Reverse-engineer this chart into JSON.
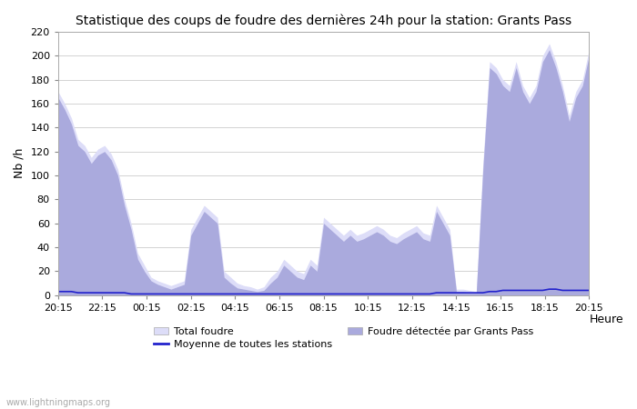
{
  "title": "Statistique des coups de foudre des dernières 24h pour la station: Grants Pass",
  "xlabel": "Heure",
  "ylabel": "Nb /h",
  "watermark": "www.lightningmaps.org",
  "ylim": [
    0,
    220
  ],
  "yticks": [
    0,
    20,
    40,
    60,
    80,
    100,
    120,
    140,
    160,
    180,
    200,
    220
  ],
  "xtick_labels": [
    "20:15",
    "22:15",
    "00:15",
    "02:15",
    "04:15",
    "06:15",
    "08:15",
    "10:15",
    "12:15",
    "14:15",
    "16:15",
    "18:15",
    "20:15"
  ],
  "xtick_positions": [
    0,
    2,
    4,
    6,
    8,
    10,
    12,
    14,
    16,
    18,
    20,
    22,
    24
  ],
  "color_total": "#ddddf8",
  "color_local": "#aaaadd",
  "color_avg": "#2222cc",
  "background": "#ffffff",
  "total_x": [
    0,
    0.3,
    0.6,
    0.9,
    1.2,
    1.5,
    1.8,
    2.1,
    2.4,
    2.7,
    3.0,
    3.3,
    3.6,
    3.9,
    4.2,
    4.5,
    4.8,
    5.1,
    5.4,
    5.7,
    6.0,
    6.3,
    6.6,
    6.9,
    7.2,
    7.5,
    7.8,
    8.1,
    8.4,
    8.7,
    9.0,
    9.3,
    9.6,
    9.9,
    10.2,
    10.5,
    10.8,
    11.1,
    11.4,
    11.7,
    12.0,
    12.3,
    12.6,
    12.9,
    13.2,
    13.5,
    13.8,
    14.1,
    14.4,
    14.7,
    15.0,
    15.3,
    15.6,
    15.9,
    16.2,
    16.5,
    16.8,
    17.1,
    17.4,
    17.7,
    18.0,
    18.3,
    18.6,
    18.9,
    19.2,
    19.5,
    19.8,
    20.1,
    20.4,
    20.7,
    21.0,
    21.3,
    21.6,
    21.9,
    22.2,
    22.5,
    22.8,
    23.1,
    23.4,
    23.7,
    24.0
  ],
  "total_foudre": [
    170,
    160,
    148,
    130,
    125,
    115,
    122,
    125,
    118,
    105,
    80,
    60,
    35,
    25,
    15,
    12,
    10,
    8,
    10,
    12,
    55,
    65,
    75,
    70,
    65,
    20,
    15,
    10,
    8,
    7,
    5,
    7,
    15,
    20,
    30,
    25,
    20,
    18,
    30,
    25,
    65,
    60,
    55,
    50,
    55,
    50,
    52,
    55,
    58,
    55,
    50,
    48,
    52,
    55,
    58,
    52,
    50,
    75,
    65,
    55,
    5,
    5,
    4,
    3,
    110,
    195,
    190,
    180,
    175,
    195,
    175,
    165,
    175,
    200,
    210,
    195,
    175,
    150,
    170,
    180,
    205
  ],
  "local_foudre": [
    165,
    155,
    143,
    125,
    120,
    110,
    117,
    120,
    113,
    100,
    75,
    55,
    30,
    20,
    12,
    9,
    7,
    5,
    7,
    9,
    50,
    60,
    70,
    65,
    60,
    15,
    10,
    6,
    5,
    4,
    3,
    4,
    10,
    15,
    25,
    20,
    15,
    13,
    25,
    20,
    60,
    55,
    50,
    45,
    50,
    45,
    47,
    50,
    53,
    50,
    45,
    43,
    47,
    50,
    53,
    47,
    45,
    70,
    60,
    50,
    3,
    3,
    2,
    2,
    105,
    190,
    185,
    175,
    170,
    190,
    170,
    160,
    170,
    195,
    205,
    190,
    170,
    145,
    165,
    175,
    200
  ],
  "avg_x": [
    0,
    0.3,
    0.6,
    0.9,
    1.2,
    1.5,
    1.8,
    2.1,
    2.4,
    2.7,
    3.0,
    3.3,
    3.6,
    3.9,
    4.2,
    4.5,
    4.8,
    5.1,
    5.4,
    5.7,
    6.0,
    6.3,
    6.6,
    6.9,
    7.2,
    7.5,
    7.8,
    8.1,
    8.4,
    8.7,
    9.0,
    9.3,
    9.6,
    9.9,
    10.2,
    10.5,
    10.8,
    11.1,
    11.4,
    11.7,
    12.0,
    12.3,
    12.6,
    12.9,
    13.2,
    13.5,
    13.8,
    14.1,
    14.4,
    14.7,
    15.0,
    15.3,
    15.6,
    15.9,
    16.2,
    16.5,
    16.8,
    17.1,
    17.4,
    17.7,
    18.0,
    18.3,
    18.6,
    18.9,
    19.2,
    19.5,
    19.8,
    20.1,
    20.4,
    20.7,
    21.0,
    21.3,
    21.6,
    21.9,
    22.2,
    22.5,
    22.8,
    23.1,
    23.4,
    23.7,
    24.0
  ],
  "avg_foudre": [
    3,
    3,
    3,
    2,
    2,
    2,
    2,
    2,
    2,
    2,
    2,
    1,
    1,
    1,
    1,
    1,
    1,
    1,
    1,
    1,
    1,
    1,
    1,
    1,
    1,
    1,
    1,
    1,
    1,
    1,
    1,
    1,
    1,
    1,
    1,
    1,
    1,
    1,
    1,
    1,
    1,
    1,
    1,
    1,
    1,
    1,
    1,
    1,
    1,
    1,
    1,
    1,
    1,
    1,
    1,
    1,
    1,
    2,
    2,
    2,
    2,
    2,
    2,
    2,
    2,
    3,
    3,
    4,
    4,
    4,
    4,
    4,
    4,
    4,
    5,
    5,
    4,
    4,
    4,
    4,
    4
  ]
}
